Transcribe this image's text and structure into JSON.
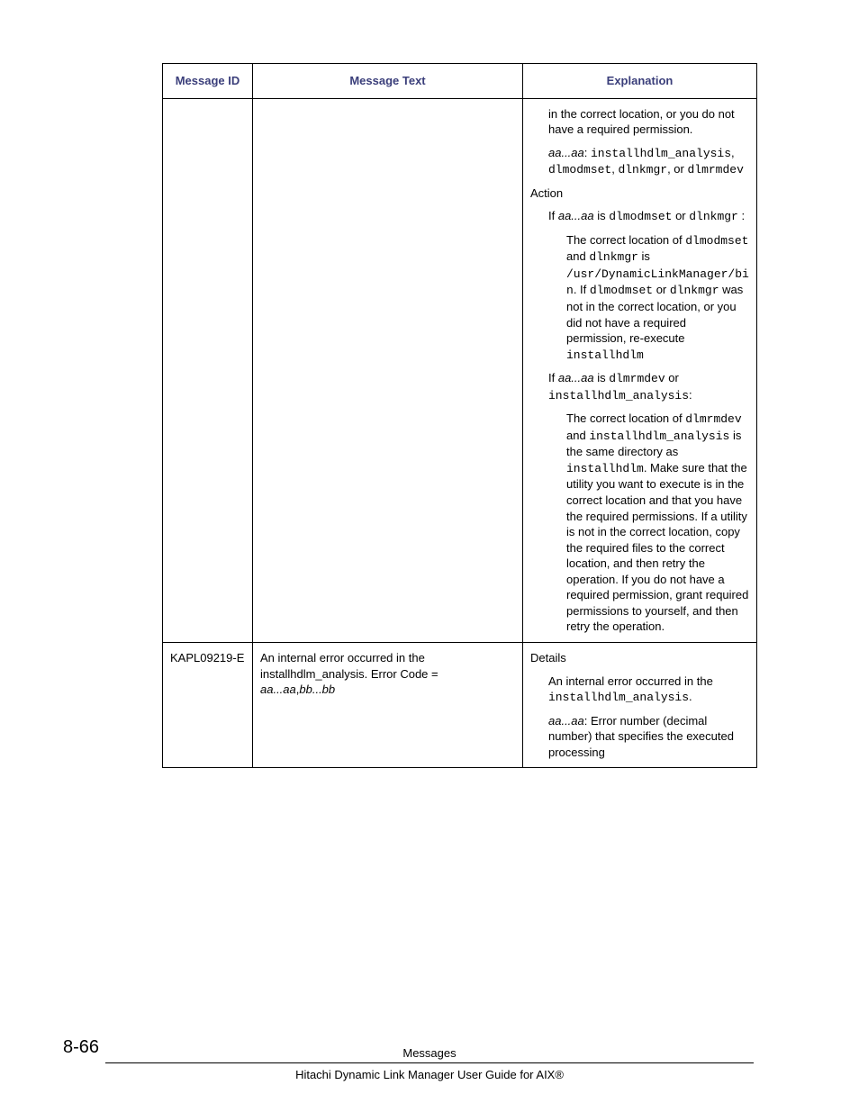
{
  "table": {
    "headers": {
      "col1": "Message ID",
      "col2": "Message Text",
      "col3": "Explanation"
    },
    "row1": {
      "explanation": {
        "p1a": "in the correct location, or you do not have a required permission.",
        "p2_var": "aa...aa",
        "p2_colon": ": ",
        "p2_codes": "installhdlm_analysis",
        "p2_comma": ", ",
        "p2_code2": "dlmodmset",
        "p2_c3": ", ",
        "p2_code3": "dlnkmgr",
        "p2_or": ", or ",
        "p2_code4": "dlmrmdev",
        "action_label": "Action",
        "if1_pre": "If ",
        "if1_var": "aa...aa",
        "if1_is": " is ",
        "if1_c1": "dlmodmset",
        "if1_or": " or ",
        "if1_c2": "dlnkmgr",
        "if1_colon": " :",
        "loc1_a": "The correct location of ",
        "loc1_c1": "dlmodmset",
        "loc1_and": " and ",
        "loc1_c2": "dlnkmgr",
        "loc1_is": " is ",
        "loc1_path": "/usr/DynamicLinkManager/bin",
        "loc1_dot": ". If ",
        "loc1_c3": "dlmodmset",
        "loc1_or": " or ",
        "loc1_c4": "dlnkmgr",
        "loc1_tail": " was not in the correct location, or you did not have a required permission, re-execute ",
        "loc1_c5": "installhdlm",
        "if2_pre": "If ",
        "if2_var": "aa...aa",
        "if2_is": " is ",
        "if2_c1": "dlmrmdev",
        "if2_or": " or ",
        "if2_c2": "installhdlm_analysis",
        "if2_colon": ":",
        "loc2_a": "The correct location of ",
        "loc2_c1": "dlmrmdev",
        "loc2_and": " and ",
        "loc2_c2": "installhdlm_analysis",
        "loc2_b": " is the same directory as ",
        "loc2_c3": "installhdlm",
        "loc2_tail": ". Make sure that the utility you want to execute is in the correct location and that you have the required permissions. If a utility is not in the correct location, copy the required files to the correct location, and then retry the operation. If you do not have a required permission, grant required permissions to yourself, and then retry the operation."
      }
    },
    "row2": {
      "id": "KAPL09219-E",
      "text_a": "An internal error occurred in the installhdlm_analysis. Error Code = ",
      "text_var": "aa...aa",
      "text_c": ",",
      "text_var2": "bb...bb",
      "explanation": {
        "details_label": "Details",
        "p1": "An internal error occurred in the ",
        "p1_code": "installhdlm_analysis",
        "p1_dot": ".",
        "p2_var": "aa...aa",
        "p2_tail": ": Error number (decimal number) that specifies the executed processing"
      }
    }
  },
  "footer": {
    "pagenum": "8-66",
    "title": "Messages",
    "subtitle": "Hitachi Dynamic Link Manager User Guide for AIX®"
  }
}
